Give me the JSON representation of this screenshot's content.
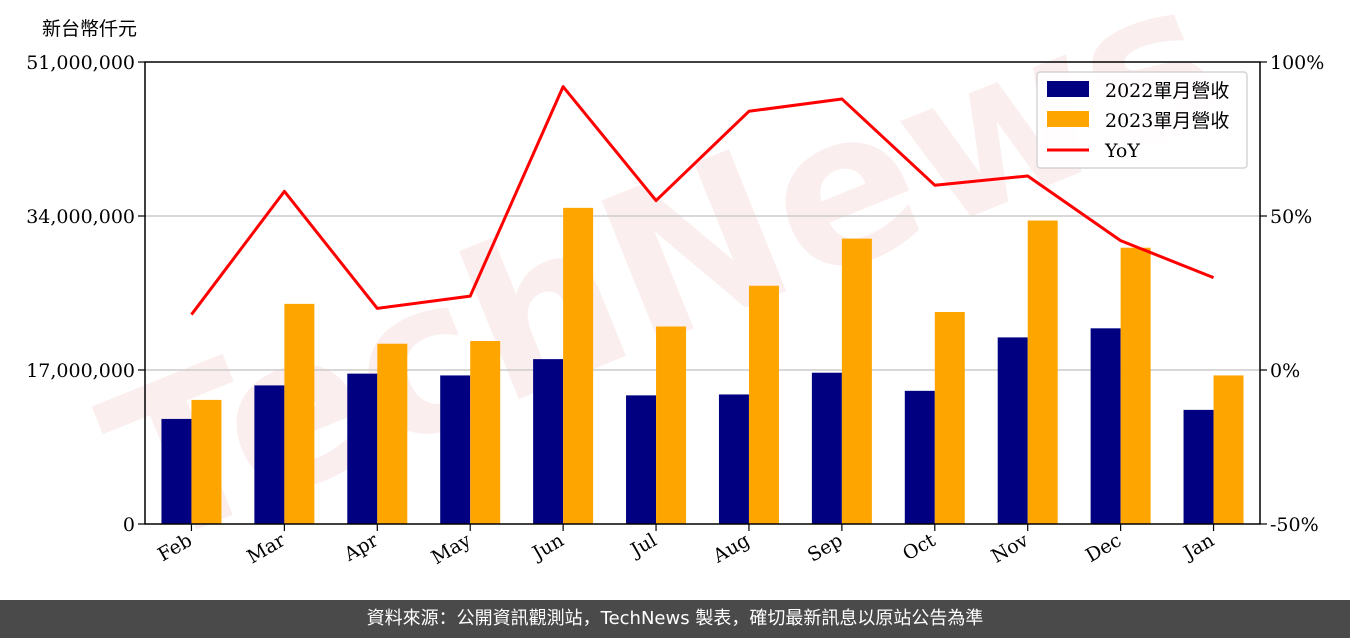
{
  "unit_label": "新台幣仟元",
  "footer_text": "資料來源：公開資訊觀測站，TechNews 製表，確切最新訊息以原站公告為準",
  "watermark": "TechNews",
  "colors": {
    "s2022": "#000080",
    "s2023": "#ffa500",
    "yoy": "#ff0000",
    "grid": "#cccccc"
  },
  "chart_data": {
    "type": "bar",
    "categories": [
      "Feb",
      "Mar",
      "Apr",
      "May",
      "Jun",
      "Jul",
      "Aug",
      "Sep",
      "Oct",
      "Nov",
      "Dec",
      "Jan"
    ],
    "series": [
      {
        "name": "2022單月營收",
        "type": "bar",
        "values": [
          11600000,
          15300000,
          16600000,
          16400000,
          18200000,
          14200000,
          14300000,
          16700000,
          14700000,
          20600000,
          21600000,
          12600000
        ]
      },
      {
        "name": "2023單月營收",
        "type": "bar",
        "values": [
          13700000,
          24300000,
          19900000,
          20200000,
          34900000,
          21800000,
          26300000,
          31500000,
          23400000,
          33500000,
          30500000,
          16400000
        ]
      },
      {
        "name": "YoY",
        "type": "line",
        "axis": "right",
        "values": [
          18,
          58,
          20,
          24,
          92,
          55,
          84,
          88,
          60,
          63,
          42,
          30
        ]
      }
    ],
    "ylim": [
      0,
      51000000
    ],
    "yticks": [
      "0",
      "17,000,000",
      "34,000,000",
      "51,000,000"
    ],
    "y2lim": [
      -50,
      100
    ],
    "y2ticks": [
      "-50%",
      "0%",
      "50%",
      "100%"
    ],
    "grid": "horizontal",
    "legend": "top-right"
  }
}
